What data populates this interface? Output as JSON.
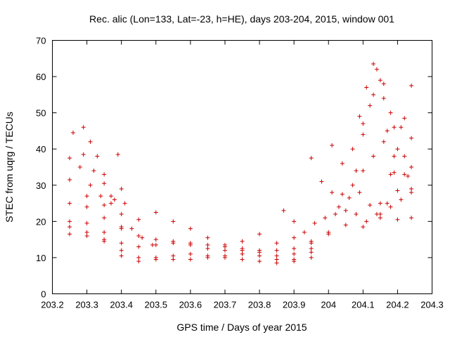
{
  "chart_data": {
    "type": "scatter",
    "title": "Rec. alic (Lon=133, Lat=-23, h=HE), days 203-204, 2015, window 001",
    "xlabel": "GPS time / Days of year 2015",
    "ylabel": "STEC from uqrg / TECUs",
    "xlim": [
      203.2,
      204.3
    ],
    "ylim": [
      0,
      70
    ],
    "xticks": [
      "203.2",
      "203.3",
      "203.4",
      "203.5",
      "203.6",
      "203.7",
      "203.8",
      "203.9",
      "204",
      "204.1",
      "204.2",
      "204.3"
    ],
    "yticks": [
      "0",
      "10",
      "20",
      "30",
      "40",
      "50",
      "60",
      "70"
    ],
    "grid": false,
    "marker": "+",
    "color": "#cc0000",
    "tracks": [
      {
        "x": [
          203.25,
          203.3,
          203.35,
          203.4,
          203.45,
          203.5,
          203.55,
          203.6,
          203.65,
          203.7,
          203.75,
          203.8,
          203.85,
          203.9,
          203.95,
          204.0,
          204.05,
          204.1,
          204.15,
          204.2,
          204.24
        ],
        "y": [
          16.5,
          16.0,
          14.5,
          12.0,
          10.0,
          9.5,
          9.5,
          9.5,
          10.0,
          10.0,
          9.5,
          9.0,
          8.5,
          9.0,
          10.0,
          16.5,
          19.0,
          18.5,
          21.0,
          20.5,
          21.0
        ]
      },
      {
        "x": [
          203.25,
          203.3,
          203.35,
          203.4,
          203.45,
          203.5,
          203.55,
          203.6,
          203.65,
          203.7,
          203.75,
          203.8,
          203.85,
          203.9,
          203.95,
          204.0
        ],
        "y": [
          18.5,
          17.0,
          15.0,
          10.5,
          9.0,
          10.0,
          10.5,
          11.0,
          10.5,
          10.5,
          11.0,
          10.5,
          9.5,
          9.5,
          11.5,
          17.0
        ]
      },
      {
        "x": [
          203.25,
          203.3,
          203.35,
          203.4,
          203.45,
          203.5,
          203.55,
          203.6,
          203.65,
          203.7,
          203.75,
          203.8,
          203.85,
          203.9,
          203.95
        ],
        "y": [
          20.0,
          19.5,
          17.0,
          14.0,
          13.0,
          13.5,
          14.0,
          13.5,
          12.5,
          12.0,
          12.0,
          11.5,
          10.5,
          11.0,
          12.5
        ]
      },
      {
        "x": [
          203.25,
          203.3,
          203.35,
          203.4,
          203.45,
          203.5,
          203.55,
          203.6,
          203.65,
          203.7,
          203.75,
          203.8,
          203.85,
          203.9,
          203.95
        ],
        "y": [
          25.0,
          24.0,
          21.0,
          18.0,
          16.0,
          15.0,
          14.5,
          14.0,
          13.5,
          13.0,
          12.5,
          12.0,
          12.0,
          12.5,
          14.0
        ]
      },
      {
        "x": [
          203.25,
          203.3,
          203.35,
          203.4,
          203.45,
          203.5,
          203.55,
          203.6,
          203.65,
          203.7,
          203.75,
          203.8,
          203.85,
          203.9,
          203.95
        ],
        "y": [
          31.5,
          27.0,
          24.5,
          18.5,
          20.5,
          22.5,
          20.0,
          18.0,
          15.5,
          13.5,
          14.5,
          16.5,
          14.0,
          15.5,
          14.5
        ]
      },
      {
        "x": [
          203.25,
          203.28,
          203.31,
          203.34,
          203.37,
          203.4,
          203.43,
          203.46,
          203.49
        ],
        "y": [
          37.5,
          35.0,
          30.0,
          27.0,
          25.0,
          22.0,
          18.0,
          15.5,
          13.5
        ]
      },
      {
        "x": [
          203.26,
          203.29,
          203.32,
          203.35,
          203.38
        ],
        "y": [
          44.5,
          38.5,
          34.0,
          30.5,
          26.0
        ]
      },
      {
        "x": [
          203.29,
          203.31,
          203.33,
          203.35,
          203.37
        ],
        "y": [
          46.0,
          42.0,
          38.0,
          33.0,
          27.0
        ]
      },
      {
        "x": [
          203.39,
          203.4,
          203.41
        ],
        "y": [
          38.5,
          29.0,
          25.0
        ]
      },
      {
        "x": [
          203.95,
          203.98,
          204.01,
          204.04,
          204.07,
          204.1,
          204.13,
          204.16,
          204.19,
          204.22,
          204.24
        ],
        "y": [
          37.5,
          31.0,
          28.0,
          27.5,
          30.0,
          34.0,
          38.0,
          42.0,
          38.0,
          33.0,
          29.0
        ]
      },
      {
        "x": [
          204.01,
          204.04,
          204.07,
          204.1,
          204.13,
          204.16,
          204.19,
          204.22,
          204.24
        ],
        "y": [
          41.0,
          36.0,
          40.0,
          47.0,
          55.0,
          54.0,
          46.0,
          48.5,
          43.0
        ]
      },
      {
        "x": [
          204.08,
          204.1,
          204.12,
          204.14,
          204.16,
          204.18,
          204.2,
          204.22,
          204.24
        ],
        "y": [
          34.0,
          44.0,
          52.0,
          62.0,
          58.0,
          50.0,
          40.0,
          38.0,
          35.0
        ]
      },
      {
        "x": [
          204.09,
          204.11,
          204.13,
          204.15,
          204.17,
          204.19
        ],
        "y": [
          49.0,
          57.0,
          63.5,
          59.0,
          45.0,
          33.5
        ]
      },
      {
        "x": [
          204.15,
          204.18,
          204.21,
          204.24
        ],
        "y": [
          25.0,
          33.0,
          46.0,
          57.5
        ]
      },
      {
        "x": [
          204.03,
          204.06,
          204.09,
          204.12,
          204.15,
          204.18,
          204.21,
          204.24
        ],
        "y": [
          24.0,
          26.5,
          28.0,
          24.5,
          22.0,
          24.0,
          26.0,
          28.0
        ]
      },
      {
        "x": [
          203.87,
          203.9,
          203.93,
          203.96,
          203.99,
          204.02,
          204.05,
          204.08,
          204.11,
          204.14,
          204.17,
          204.2,
          204.23
        ],
        "y": [
          23.0,
          20.0,
          17.0,
          19.5,
          21.0,
          22.0,
          23.0,
          22.0,
          20.0,
          22.0,
          25.0,
          28.5,
          32.5
        ]
      }
    ]
  }
}
